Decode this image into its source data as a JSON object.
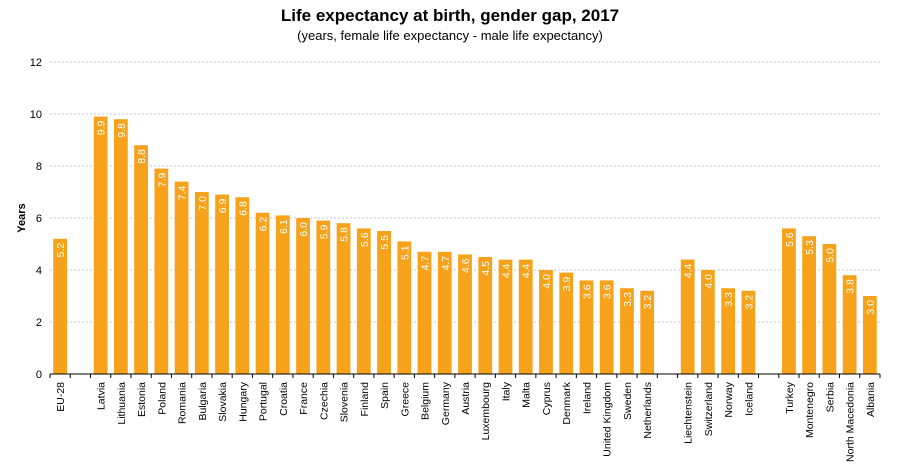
{
  "chart_data": {
    "type": "bar",
    "title": "Life expectancy at birth, gender gap, 2017",
    "subtitle": "(years, female life expectancy - male life expectancy)",
    "xlabel": "",
    "ylabel": "Years",
    "ylim": [
      0,
      12
    ],
    "yticks": [
      0,
      2,
      4,
      6,
      8,
      10,
      12
    ],
    "grid": true,
    "bar_color": "#F7A21B",
    "groups": [
      {
        "categories": [
          "EU-28"
        ],
        "values": [
          5.2
        ]
      },
      {
        "categories": [
          "Latvia",
          "Lithuania",
          "Estonia",
          "Poland",
          "Romania",
          "Bulgaria",
          "Slovakia",
          "Hungary",
          "Portugal",
          "Croatia",
          "France",
          "Czechia",
          "Slovenia",
          "Finland",
          "Spain",
          "Greece",
          "Belgium",
          "Germany",
          "Austria",
          "Luxembourg",
          "Italy",
          "Malta",
          "Cyprus",
          "Denmark",
          "Ireland",
          "United Kingdom",
          "Sweden",
          "Netherlands"
        ],
        "values": [
          9.9,
          9.8,
          8.8,
          7.9,
          7.4,
          7.0,
          6.9,
          6.8,
          6.2,
          6.1,
          6.0,
          5.9,
          5.8,
          5.6,
          5.5,
          5.1,
          4.7,
          4.7,
          4.6,
          4.5,
          4.4,
          4.4,
          4.0,
          3.9,
          3.6,
          3.6,
          3.3,
          3.2
        ]
      },
      {
        "categories": [
          "Liechtenstein",
          "Switzerland",
          "Norway",
          "Iceland"
        ],
        "values": [
          4.4,
          4.0,
          3.3,
          3.2
        ]
      },
      {
        "categories": [
          "Turkey",
          "Montenegro",
          "Serbia",
          "North Macedonia",
          "Albania"
        ],
        "values": [
          5.6,
          5.3,
          5.0,
          3.8,
          3.0
        ]
      }
    ]
  }
}
